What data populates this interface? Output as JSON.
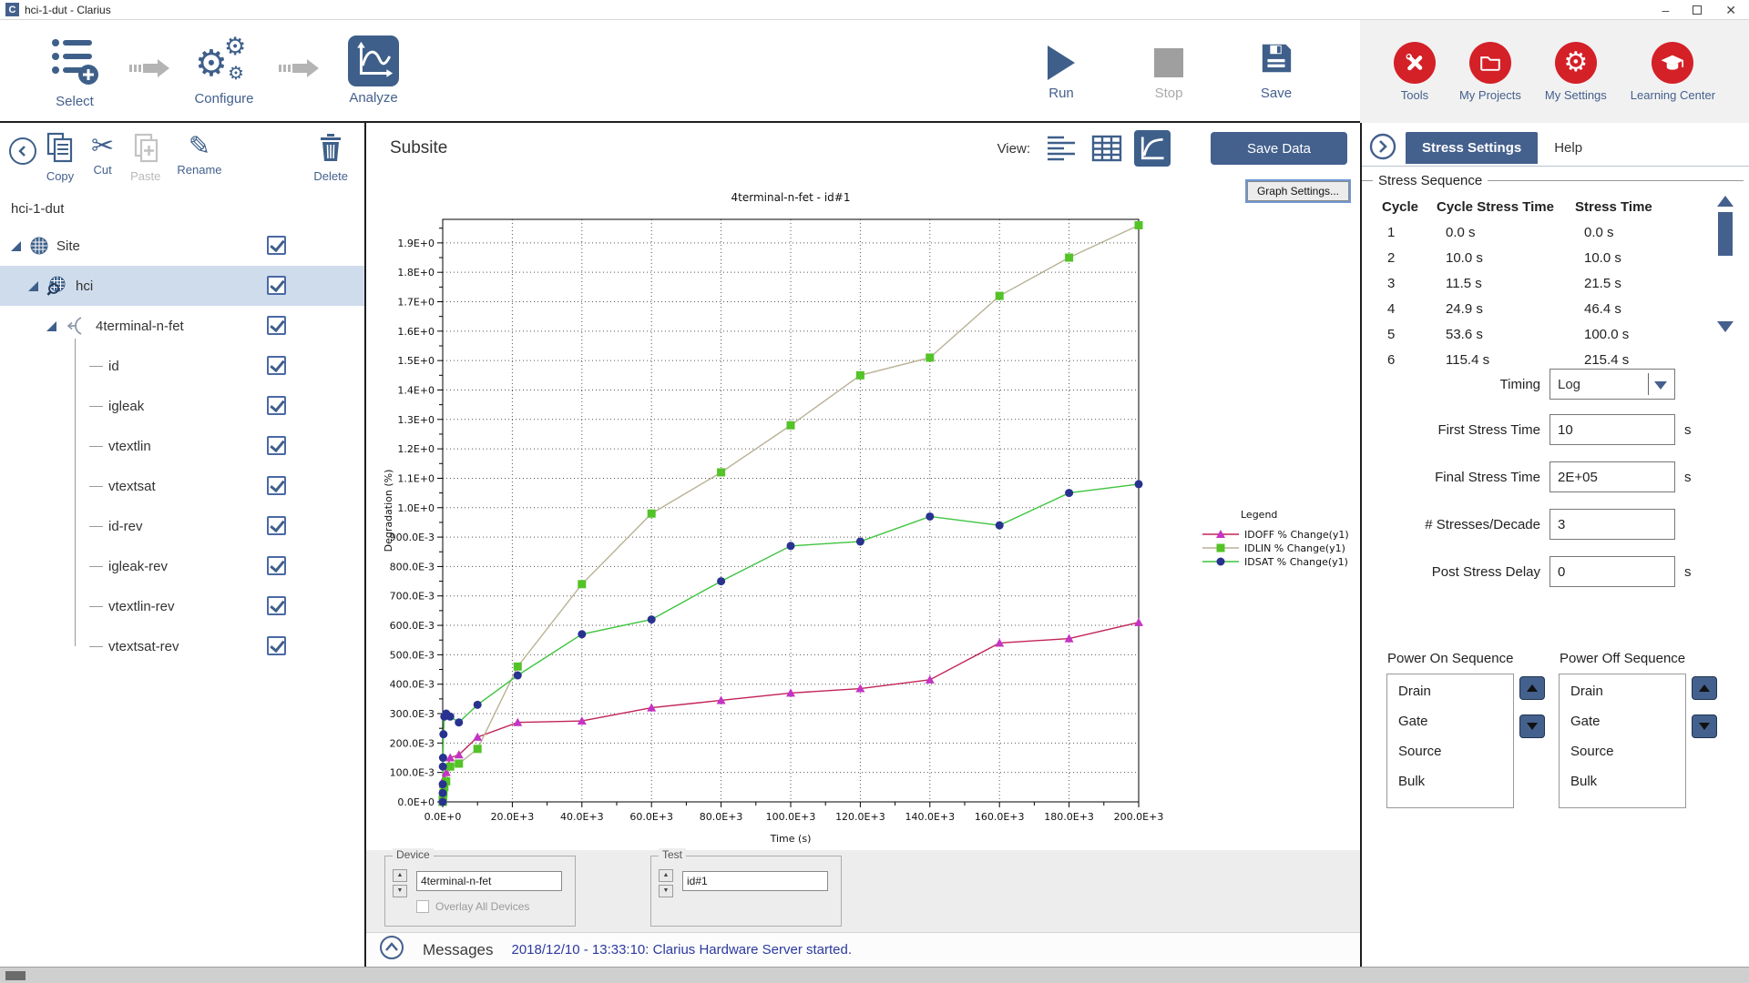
{
  "window": {
    "title": "hci-1-dut - Clarius",
    "logo_letter": "C"
  },
  "workflow": {
    "steps": [
      {
        "label": "Select"
      },
      {
        "label": "Configure"
      },
      {
        "label": "Analyze",
        "active": true
      }
    ]
  },
  "run_controls": {
    "run": "Run",
    "stop": "Stop",
    "save": "Save"
  },
  "quick_links": [
    {
      "label": "Tools"
    },
    {
      "label": "My Projects"
    },
    {
      "label": "My Settings"
    },
    {
      "label": "Learning Center"
    }
  ],
  "sidebar": {
    "toolbar": {
      "copy": "Copy",
      "cut": "Cut",
      "paste": "Paste",
      "rename": "Rename",
      "delete": "Delete"
    },
    "project_name": "hci-1-dut",
    "tree": [
      {
        "label": "Site",
        "level": 0,
        "icon": "wafer",
        "checked": true
      },
      {
        "label": "hci",
        "level": 1,
        "icon": "wafer-search",
        "checked": true,
        "selected": true
      },
      {
        "label": "4terminal-n-fet",
        "level": 2,
        "icon": "device",
        "checked": true
      },
      {
        "label": "id",
        "level": 3,
        "checked": true
      },
      {
        "label": "igleak",
        "level": 3,
        "checked": true
      },
      {
        "label": "vtextlin",
        "level": 3,
        "checked": true
      },
      {
        "label": "vtextsat",
        "level": 3,
        "checked": true
      },
      {
        "label": "id-rev",
        "level": 3,
        "checked": true
      },
      {
        "label": "igleak-rev",
        "level": 3,
        "checked": true
      },
      {
        "label": "vtextlin-rev",
        "level": 3,
        "checked": true
      },
      {
        "label": "vtextsat-rev",
        "level": 3,
        "checked": true
      }
    ]
  },
  "main": {
    "header_title": "Subsite",
    "view_label": "View:",
    "save_data_label": "Save Data",
    "graph_settings_label": "Graph Settings...",
    "device_group": {
      "label": "Device",
      "value": "4terminal-n-fet",
      "overlay_label": "Overlay All Devices",
      "overlay_checked": false
    },
    "test_group": {
      "label": "Test",
      "value": "id#1"
    },
    "messages": {
      "label": "Messages",
      "text": "2018/12/10 - 13:33:10: Clarius Hardware Server started."
    }
  },
  "chart_data": {
    "type": "line",
    "title": "4terminal-n-fet - id#1",
    "xlabel": "Time (s)",
    "ylabel": "Degradation (%)",
    "xlim": [
      0,
      200000
    ],
    "ylim": [
      0,
      1.98
    ],
    "grid": true,
    "legend_title": "Legend",
    "legend_position": "right",
    "xticks": {
      "values": [
        0,
        20000,
        40000,
        60000,
        80000,
        100000,
        120000,
        140000,
        160000,
        180000,
        200000
      ],
      "labels": [
        "0.0E+0",
        "20.0E+3",
        "40.0E+3",
        "60.0E+3",
        "80.0E+3",
        "100.0E+3",
        "120.0E+3",
        "140.0E+3",
        "160.0E+3",
        "180.0E+3",
        "200.0E+3"
      ]
    },
    "yticks": {
      "values": [
        0,
        0.1,
        0.2,
        0.3,
        0.4,
        0.5,
        0.6,
        0.7,
        0.8,
        0.9,
        1.0,
        1.1,
        1.2,
        1.3,
        1.4,
        1.5,
        1.6,
        1.7,
        1.8,
        1.9
      ],
      "labels": [
        "0.0E+0",
        "100.0E-3",
        "200.0E-3",
        "300.0E-3",
        "400.0E-3",
        "500.0E-3",
        "600.0E-3",
        "700.0E-3",
        "800.0E-3",
        "900.0E-3",
        "1.0E+0",
        "1.1E+0",
        "1.2E+0",
        "1.3E+0",
        "1.4E+0",
        "1.5E+0",
        "1.6E+0",
        "1.7E+0",
        "1.8E+0",
        "1.9E+0"
      ]
    },
    "x": [
      0,
      10,
      21.5,
      46.4,
      100,
      215.4,
      464.2,
      1000,
      2154,
      4642,
      10000,
      21544,
      40000,
      60000,
      80000,
      100000,
      120000,
      140000,
      160000,
      180000,
      200000
    ],
    "series": [
      {
        "name": "IDOFF % Change(y1)",
        "marker": "triangle",
        "marker_color": "#c433c4",
        "line_color": "#c22456",
        "y": [
          0,
          0.005,
          0.01,
          0.02,
          0.04,
          0.06,
          0.08,
          0.1,
          0.15,
          0.16,
          0.22,
          0.27,
          0.275,
          0.32,
          0.345,
          0.37,
          0.385,
          0.415,
          0.54,
          0.555,
          0.61
        ]
      },
      {
        "name": "IDLIN % Change(y1)",
        "marker": "square",
        "marker_color": "#53c327",
        "line_color": "#b9b295",
        "y": [
          0,
          0.002,
          0.005,
          0.01,
          0.02,
          0.03,
          0.05,
          0.07,
          0.12,
          0.13,
          0.18,
          0.46,
          0.74,
          0.98,
          1.12,
          1.28,
          1.45,
          1.51,
          1.72,
          1.85,
          1.96
        ]
      },
      {
        "name": "IDSAT % Change(y1)",
        "marker": "circle",
        "marker_color": "#28328f",
        "line_color": "#3ec43e",
        "y": [
          0,
          0.03,
          0.06,
          0.12,
          0.15,
          0.23,
          0.29,
          0.3,
          0.29,
          0.27,
          0.33,
          0.43,
          0.57,
          0.62,
          0.75,
          0.87,
          0.885,
          0.97,
          0.94,
          1.05,
          1.08
        ]
      }
    ]
  },
  "stress_panel": {
    "tabs": [
      {
        "label": "Stress Settings",
        "active": true
      },
      {
        "label": "Help"
      }
    ],
    "sequence": {
      "group_label": "Stress Sequence",
      "columns": [
        "Cycle",
        "Cycle Stress Time",
        "Stress Time"
      ],
      "rows": [
        [
          "1",
          "0.0 s",
          "0.0 s"
        ],
        [
          "2",
          "10.0 s",
          "10.0 s"
        ],
        [
          "3",
          "11.5 s",
          "21.5 s"
        ],
        [
          "4",
          "24.9 s",
          "46.4 s"
        ],
        [
          "5",
          "53.6 s",
          "100.0 s"
        ],
        [
          "6",
          "115.4 s",
          "215.4 s"
        ]
      ]
    },
    "timing": {
      "label": "Timing",
      "value": "Log"
    },
    "fields": [
      {
        "label": "First Stress Time",
        "value": "10",
        "unit": "s"
      },
      {
        "label": "Final Stress Time",
        "value": "2E+05",
        "unit": "s"
      },
      {
        "label": "# Stresses/Decade",
        "value": "3",
        "unit": ""
      },
      {
        "label": "Post Stress Delay",
        "value": "0",
        "unit": "s"
      }
    ],
    "power_on": {
      "label": "Power On Sequence",
      "items": [
        "Drain",
        "Gate",
        "Source",
        "Bulk"
      ]
    },
    "power_off": {
      "label": "Power Off Sequence",
      "items": [
        "Drain",
        "Gate",
        "Source",
        "Bulk"
      ]
    }
  },
  "colors": {
    "accent": "#44608d",
    "icon_blue": "#3e5f8a",
    "brand_red": "#d42027",
    "selection": "#cfdcec",
    "message_blue": "#2b3aa0"
  }
}
